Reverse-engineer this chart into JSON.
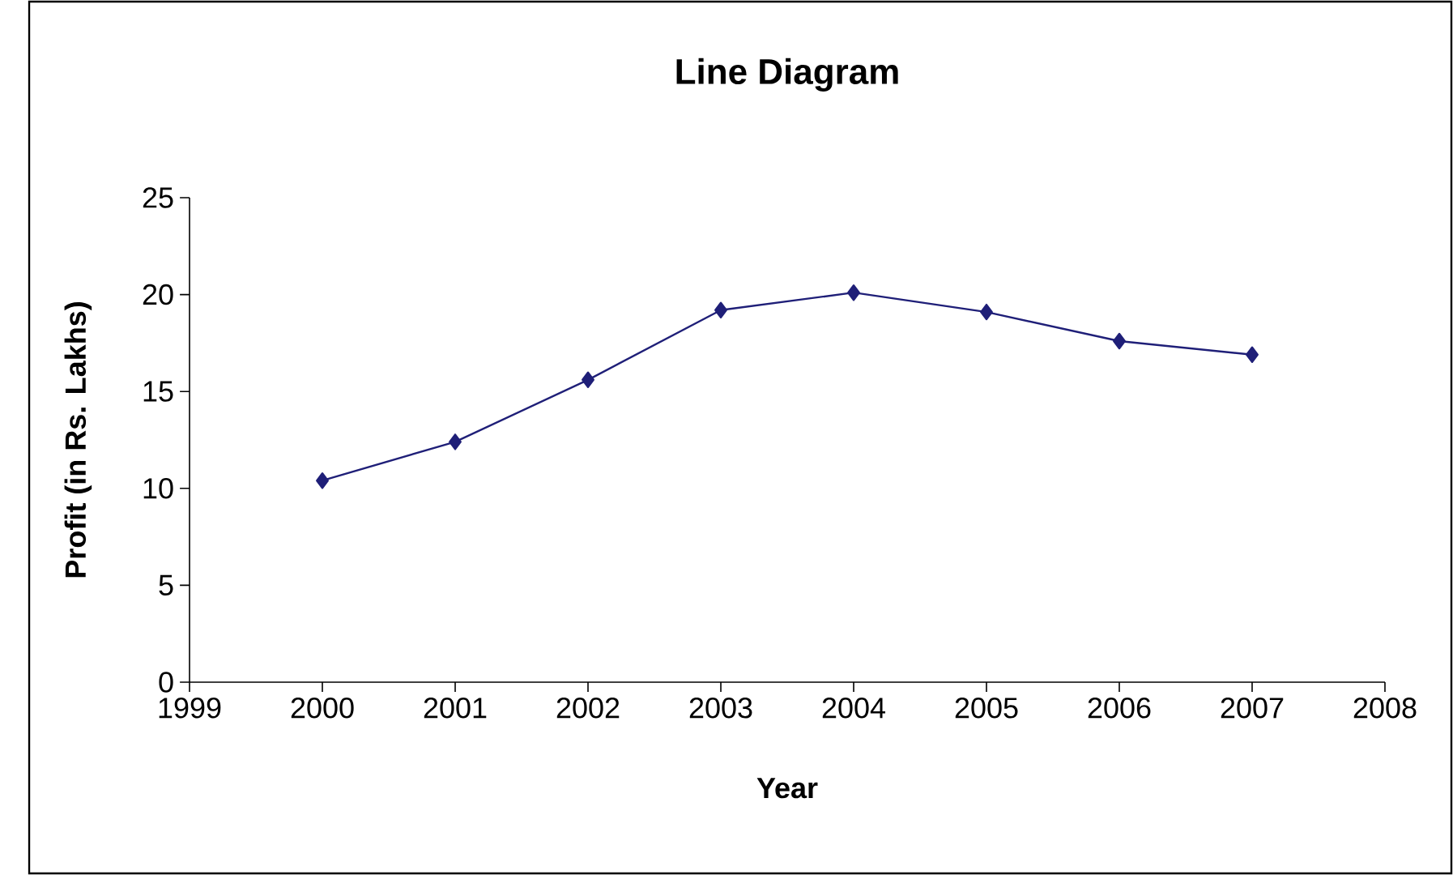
{
  "chart_data": {
    "type": "line",
    "title": "Line Diagram",
    "xlabel": "Year",
    "ylabel": "Profit (in Rs. Lakhs)",
    "x": [
      2000,
      2001,
      2002,
      2003,
      2004,
      2005,
      2006,
      2007
    ],
    "series": [
      {
        "color": "#1f1f78",
        "values": [
          10.4,
          12.4,
          15.6,
          19.2,
          20.1,
          19.1,
          17.6,
          16.9
        ]
      }
    ],
    "xlim": [
      1999,
      2008
    ],
    "xticks": [
      1999,
      2000,
      2001,
      2002,
      2003,
      2004,
      2005,
      2006,
      2007,
      2008
    ],
    "ylim": [
      0,
      25
    ],
    "yticks": [
      0,
      5,
      10,
      15,
      20,
      25
    ],
    "marker": "diamond",
    "line_style": "solid"
  }
}
